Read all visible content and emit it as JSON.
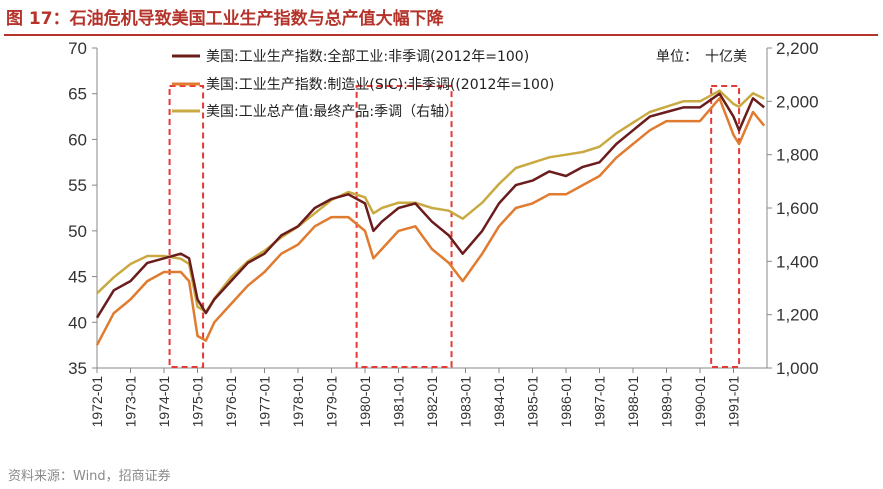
{
  "figure": {
    "title": "图 17：石油危机导致美国工业生产指数与总产值大幅下降",
    "source": "资料来源：Wind，招商证券"
  },
  "colors": {
    "title": "#b5332a",
    "industrial_total": "#6b1c1c",
    "manufacturing": "#e07b30",
    "gross_output": "#c9aa42",
    "highlight_box": "#e53935"
  },
  "chart_data": {
    "type": "line",
    "title": "",
    "xlabel": "",
    "ylabel": "",
    "y_left": {
      "ylim": [
        35,
        70
      ],
      "ticks": [
        "35",
        "40",
        "45",
        "50",
        "55",
        "60",
        "65",
        "70"
      ]
    },
    "y_right": {
      "ylim": [
        1000,
        2200
      ],
      "ticks": [
        "1,000",
        "1,200",
        "1,400",
        "1,600",
        "1,800",
        "2,000",
        "2,200"
      ]
    },
    "x_ticks": [
      "1972-01",
      "1973-01",
      "1974-01",
      "1975-01",
      "1976-01",
      "1977-01",
      "1978-01",
      "1979-01",
      "1980-01",
      "1981-01",
      "1982-01",
      "1983-01",
      "1984-01",
      "1985-01",
      "1986-01",
      "1987-01",
      "1988-01",
      "1989-01",
      "1990-01",
      "1991-01"
    ],
    "x_range": [
      "1972-01",
      "1991-12"
    ],
    "legend": {
      "placement": "top",
      "entries": [
        "美国:工业生产指数:全部工业:非季调(2012年=100)",
        "美国:工业生产指数:制造业(SIC):非季调((2012年=100)",
        "美国:工业总产值:最终产品:季调（右轴）"
      ],
      "unit_label": "单位：",
      "unit_value": "十亿美"
    },
    "highlight_periods": [
      {
        "start": "1974-03",
        "end": "1975-03"
      },
      {
        "start": "1979-10",
        "end": "1982-08"
      },
      {
        "start": "1990-05",
        "end": "1991-03"
      }
    ],
    "series": [
      {
        "name": "美国:工业生产指数:全部工业:非季调(2012年=100)",
        "axis": "left",
        "x": [
          "1972-01",
          "1972-07",
          "1973-01",
          "1973-07",
          "1974-01",
          "1974-07",
          "1974-10",
          "1975-01",
          "1975-04",
          "1975-07",
          "1976-01",
          "1976-07",
          "1977-01",
          "1977-07",
          "1978-01",
          "1978-07",
          "1979-01",
          "1979-07",
          "1980-01",
          "1980-04",
          "1980-07",
          "1981-01",
          "1981-07",
          "1982-01",
          "1982-07",
          "1982-12",
          "1983-07",
          "1984-01",
          "1984-07",
          "1985-01",
          "1985-07",
          "1986-01",
          "1986-07",
          "1987-01",
          "1987-07",
          "1988-01",
          "1988-07",
          "1989-01",
          "1989-07",
          "1990-01",
          "1990-08",
          "1991-01",
          "1991-03",
          "1991-08",
          "1991-12"
        ],
        "values": [
          40.5,
          43.5,
          44.5,
          46.5,
          47.0,
          47.5,
          47.0,
          42.5,
          41.0,
          42.5,
          44.5,
          46.5,
          47.5,
          49.5,
          50.5,
          52.5,
          53.5,
          54.0,
          53.0,
          50.0,
          51.0,
          52.5,
          53.0,
          51.0,
          49.5,
          47.5,
          50.0,
          53.0,
          55.0,
          55.5,
          56.5,
          56.0,
          57.0,
          57.5,
          59.5,
          61.0,
          62.5,
          63.0,
          63.5,
          63.5,
          65.0,
          62.5,
          61.0,
          64.5,
          63.5
        ]
      },
      {
        "name": "美国:工业生产指数:制造业(SIC):非季调((2012年=100)",
        "axis": "left",
        "x": [
          "1972-01",
          "1972-07",
          "1973-01",
          "1973-07",
          "1974-01",
          "1974-07",
          "1974-10",
          "1975-01",
          "1975-04",
          "1975-07",
          "1976-01",
          "1976-07",
          "1977-01",
          "1977-07",
          "1978-01",
          "1978-07",
          "1979-01",
          "1979-07",
          "1980-01",
          "1980-04",
          "1980-07",
          "1981-01",
          "1981-07",
          "1982-01",
          "1982-07",
          "1982-12",
          "1983-07",
          "1984-01",
          "1984-07",
          "1985-01",
          "1985-07",
          "1986-01",
          "1986-07",
          "1987-01",
          "1987-07",
          "1988-01",
          "1988-07",
          "1989-01",
          "1989-07",
          "1990-01",
          "1990-08",
          "1991-01",
          "1991-03",
          "1991-08",
          "1991-12"
        ],
        "values": [
          37.5,
          41.0,
          42.5,
          44.5,
          45.5,
          45.5,
          44.5,
          38.5,
          38.0,
          40.0,
          42.0,
          44.0,
          45.5,
          47.5,
          48.5,
          50.5,
          51.5,
          51.5,
          50.0,
          47.0,
          48.0,
          50.0,
          50.5,
          48.0,
          46.5,
          44.5,
          47.5,
          50.5,
          52.5,
          53.0,
          54.0,
          54.0,
          55.0,
          56.0,
          58.0,
          59.5,
          61.0,
          62.0,
          62.0,
          62.0,
          64.5,
          60.5,
          59.5,
          63.0,
          61.5
        ]
      },
      {
        "name": "美国:工业总产值:最终产品:季调（右轴）",
        "axis": "right",
        "x": [
          "1972-01",
          "1972-07",
          "1973-01",
          "1973-07",
          "1974-01",
          "1974-07",
          "1974-10",
          "1975-01",
          "1975-04",
          "1975-07",
          "1976-01",
          "1976-07",
          "1977-01",
          "1977-07",
          "1978-01",
          "1978-07",
          "1979-01",
          "1979-07",
          "1980-01",
          "1980-04",
          "1980-07",
          "1981-01",
          "1981-07",
          "1982-01",
          "1982-07",
          "1982-12",
          "1983-07",
          "1984-01",
          "1984-07",
          "1985-01",
          "1985-07",
          "1986-01",
          "1986-07",
          "1987-01",
          "1987-07",
          "1988-01",
          "1988-07",
          "1989-01",
          "1989-07",
          "1990-01",
          "1990-08",
          "1991-01",
          "1991-03",
          "1991-08",
          "1991-12"
        ],
        "values": [
          1280,
          1340,
          1390,
          1420,
          1420,
          1410,
          1390,
          1230,
          1210,
          1260,
          1340,
          1400,
          1440,
          1490,
          1530,
          1580,
          1630,
          1660,
          1640,
          1580,
          1600,
          1620,
          1620,
          1600,
          1590,
          1560,
          1620,
          1690,
          1750,
          1770,
          1790,
          1800,
          1810,
          1830,
          1880,
          1920,
          1960,
          1980,
          2000,
          2000,
          2040,
          1990,
          1980,
          2030,
          2010
        ]
      }
    ]
  }
}
